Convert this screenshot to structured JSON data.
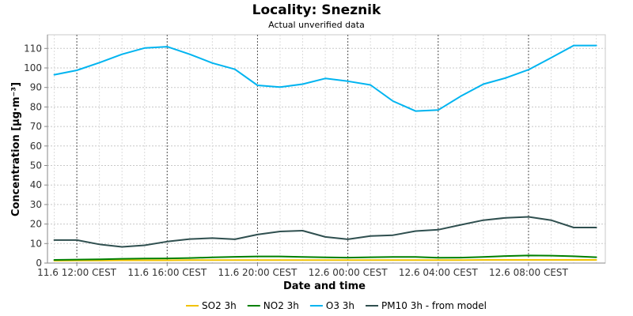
{
  "chart_data": {
    "type": "line",
    "title": "Locality: Sneznik",
    "subtitle": "Actual unverified data",
    "xlabel": "Date and time",
    "ylabel": "Concentration [µg·m⁻³]",
    "ylim": [
      0,
      117
    ],
    "yticks": [
      0,
      10,
      20,
      30,
      40,
      50,
      60,
      70,
      80,
      90,
      100,
      110
    ],
    "xlim_hours": [
      -1.3,
      23.4
    ],
    "xtick_hours": [
      0,
      4,
      8,
      12,
      16,
      20
    ],
    "xtick_labels": [
      "11.6 12:00 CEST",
      "11.6 16:00 CEST",
      "11.6 20:00 CEST",
      "12.6 00:00 CEST",
      "12.6 04:00 CEST",
      "12.6 08:00 CEST"
    ],
    "x_hours": [
      -1,
      0,
      1,
      2,
      3,
      4,
      5,
      6,
      7,
      8,
      9,
      10,
      11,
      12,
      13,
      14,
      15,
      16,
      17,
      18,
      19,
      20,
      21,
      22,
      23
    ],
    "grid": true,
    "legend_position": "bottom",
    "series": [
      {
        "name": "SO2 3h",
        "color": "#f2c200",
        "values": [
          1.2,
          1.3,
          1.3,
          1.4,
          1.4,
          1.4,
          1.5,
          1.5,
          1.5,
          1.5,
          1.5,
          1.5,
          1.5,
          1.5,
          1.5,
          1.5,
          1.5,
          1.5,
          1.5,
          1.6,
          1.6,
          1.6,
          1.6,
          1.6,
          1.6
        ]
      },
      {
        "name": "NO2 3h",
        "color": "#008000",
        "values": [
          1.6,
          1.8,
          1.9,
          2.2,
          2.3,
          2.4,
          2.6,
          2.9,
          3.2,
          3.4,
          3.4,
          3.1,
          2.9,
          2.8,
          3.0,
          3.1,
          3.1,
          2.7,
          2.8,
          3.1,
          3.6,
          3.9,
          3.8,
          3.5,
          3.0
        ]
      },
      {
        "name": "O3 3h",
        "color": "#00b4f0",
        "values": [
          96.5,
          98.8,
          102.7,
          107.0,
          110.2,
          110.9,
          107.0,
          102.5,
          99.3,
          91.1,
          90.2,
          91.7,
          94.6,
          93.2,
          91.3,
          83.0,
          77.9,
          78.4,
          85.5,
          91.7,
          94.9,
          99.1,
          105.2,
          111.5,
          111.5
        ]
      },
      {
        "name": "PM10 3h - from model",
        "color": "#2f4f4f",
        "values": [
          11.8,
          11.8,
          9.6,
          8.3,
          9.1,
          11.0,
          12.3,
          12.8,
          12.2,
          14.6,
          16.2,
          16.6,
          13.4,
          12.2,
          13.9,
          14.3,
          16.4,
          17.1,
          19.6,
          22.0,
          23.2,
          23.7,
          22.0,
          18.2,
          18.2
        ]
      }
    ]
  }
}
